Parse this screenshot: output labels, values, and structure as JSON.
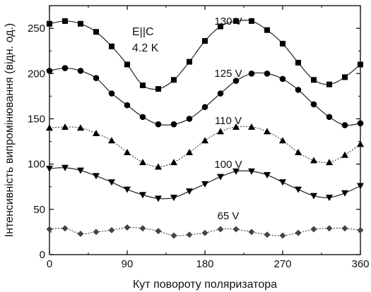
{
  "chart_data": {
    "type": "line",
    "title": "",
    "xlabel": "Кут повороту поляризатора",
    "ylabel": "Інтенсивність випромінювання (відн. од.)",
    "xlim": [
      0,
      360
    ],
    "ylim": [
      0,
      275
    ],
    "x_ticks": [
      0,
      90,
      180,
      270,
      360
    ],
    "y_ticks": [
      0,
      50,
      100,
      150,
      200,
      250
    ],
    "grid": false,
    "legend": "none",
    "annotations": [
      "E||C",
      "4.2 K"
    ],
    "series": [
      {
        "name": "130 V",
        "marker": "square",
        "line": "solid",
        "x": [
          0,
          18,
          36,
          54,
          72,
          90,
          108,
          126,
          144,
          162,
          180,
          198,
          216,
          234,
          252,
          270,
          288,
          306,
          324,
          342,
          360
        ],
        "y": [
          255,
          258,
          255,
          246,
          230,
          210,
          187,
          183,
          193,
          213,
          236,
          252,
          258,
          258,
          248,
          233,
          212,
          193,
          188,
          196,
          210
        ]
      },
      {
        "name": "125 V",
        "marker": "circle",
        "line": "solid",
        "x": [
          0,
          18,
          36,
          54,
          72,
          90,
          108,
          126,
          144,
          162,
          180,
          198,
          216,
          234,
          252,
          270,
          288,
          306,
          324,
          342,
          360
        ],
        "y": [
          203,
          206,
          203,
          195,
          178,
          165,
          152,
          144,
          144,
          150,
          163,
          178,
          192,
          200,
          200,
          194,
          182,
          166,
          152,
          143,
          145
        ]
      },
      {
        "name": "110 V",
        "marker": "triangle-up",
        "line": "dotted",
        "x": [
          0,
          18,
          36,
          54,
          72,
          90,
          108,
          126,
          144,
          162,
          180,
          198,
          216,
          234,
          252,
          270,
          288,
          306,
          324,
          342,
          360
        ],
        "y": [
          140,
          141,
          140,
          134,
          126,
          113,
          102,
          97,
          102,
          113,
          126,
          136,
          141,
          141,
          136,
          126,
          113,
          104,
          102,
          110,
          122
        ]
      },
      {
        "name": "100 V",
        "marker": "triangle-down",
        "line": "solid",
        "x": [
          0,
          18,
          36,
          54,
          72,
          90,
          108,
          126,
          144,
          162,
          180,
          198,
          216,
          234,
          252,
          270,
          288,
          306,
          324,
          342,
          360
        ],
        "y": [
          95,
          96,
          93,
          87,
          80,
          72,
          66,
          62,
          63,
          70,
          78,
          86,
          92,
          92,
          88,
          80,
          72,
          65,
          63,
          68,
          76
        ]
      },
      {
        "name": "65 V",
        "marker": "diamond",
        "line": "dotted",
        "x": [
          0,
          18,
          36,
          54,
          72,
          90,
          108,
          126,
          144,
          162,
          180,
          198,
          216,
          234,
          252,
          270,
          288,
          306,
          324,
          342,
          360
        ],
        "y": [
          28,
          29,
          23,
          25,
          27,
          30,
          29,
          26,
          21,
          22,
          24,
          28,
          28,
          25,
          22,
          21,
          24,
          28,
          29,
          29,
          27
        ]
      }
    ]
  }
}
